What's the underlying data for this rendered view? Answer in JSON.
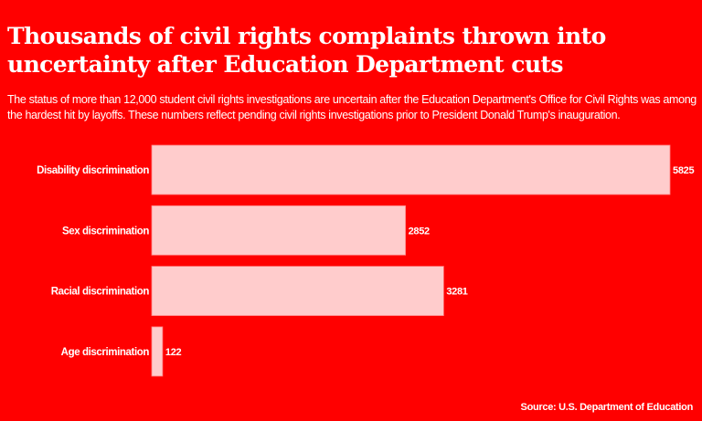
{
  "title": "Thousands of civil rights complaints thrown into uncertainty after Education Department cuts",
  "subtitle": "The status of more than 12,000 student civil rights investigations are uncertain after the Education Department's Office for Civil Rights was among the hardest hit by layoffs. These numbers reflect pending civil rights investigations prior to President Donald Trump's inauguration.",
  "source": "Source: U.S. Department of Education",
  "colors": {
    "background": "#ff0000",
    "bar_fill": "#ffcccc",
    "bar_stroke": "#ff8080",
    "text": "#ffffff"
  },
  "chart_data": {
    "type": "bar",
    "orientation": "horizontal",
    "categories": [
      "Disability discrimination",
      "Sex discrimination",
      "Racial discrimination",
      "Age discrimination"
    ],
    "values": [
      5825,
      2852,
      3281,
      122
    ],
    "data_labels": [
      "5825",
      "2852",
      "3281",
      "122"
    ],
    "xlim": [
      0,
      5825
    ],
    "grid": false,
    "legend": "none"
  }
}
